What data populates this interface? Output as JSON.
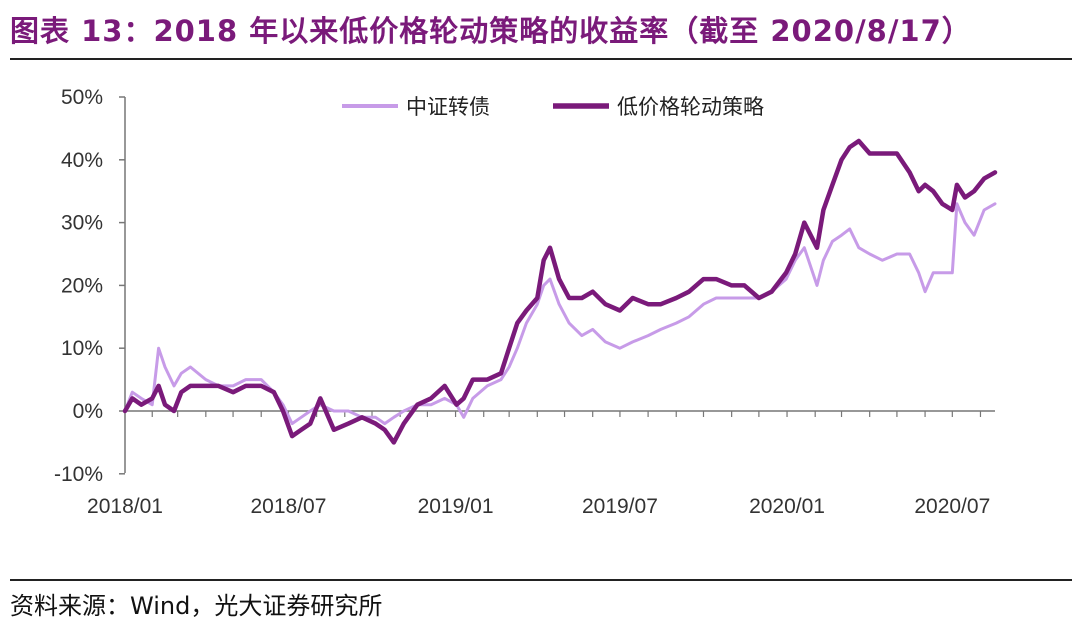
{
  "header": {
    "title": "图表 13：2018 年以来低价格轮动策略的收益率（截至 2020/8/17）"
  },
  "footer": {
    "source": "资料来源：Wind，光大证券研究所"
  },
  "chart_data": {
    "type": "line",
    "title": "图表 13：2018 年以来低价格轮动策略的收益率（截至 2020/8/17）",
    "xlabel": "",
    "ylabel": "",
    "x_ticks": [
      "2018/01",
      "2018/07",
      "2019/01",
      "2019/07",
      "2020/01",
      "2020/07"
    ],
    "y_ticks": [
      "50%",
      "40%",
      "30%",
      "20%",
      "10%",
      "0%",
      "-10%"
    ],
    "ylim": [
      -10,
      50
    ],
    "y_unit": "%",
    "x_range": [
      "2018-01-02",
      "2020-08-17"
    ],
    "legend_position": "top-center",
    "grid": false,
    "series": [
      {
        "name": "中证转债",
        "color": "#c79be8",
        "points": [
          [
            "2018-01-02",
            0
          ],
          [
            "2018-01-10",
            3
          ],
          [
            "2018-01-20",
            2
          ],
          [
            "2018-02-01",
            1
          ],
          [
            "2018-02-08",
            10
          ],
          [
            "2018-02-15",
            7
          ],
          [
            "2018-02-25",
            4
          ],
          [
            "2018-03-05",
            6
          ],
          [
            "2018-03-15",
            7
          ],
          [
            "2018-04-01",
            5
          ],
          [
            "2018-04-15",
            4
          ],
          [
            "2018-05-01",
            4
          ],
          [
            "2018-05-15",
            5
          ],
          [
            "2018-06-01",
            5
          ],
          [
            "2018-06-15",
            3
          ],
          [
            "2018-06-25",
            1
          ],
          [
            "2018-07-05",
            -2
          ],
          [
            "2018-07-15",
            -1
          ],
          [
            "2018-07-25",
            0
          ],
          [
            "2018-08-05",
            1
          ],
          [
            "2018-08-20",
            0
          ],
          [
            "2018-09-05",
            0
          ],
          [
            "2018-09-20",
            -1
          ],
          [
            "2018-10-05",
            -1
          ],
          [
            "2018-10-15",
            -2
          ],
          [
            "2018-10-25",
            -1
          ],
          [
            "2018-11-05",
            0
          ],
          [
            "2018-11-20",
            1
          ],
          [
            "2018-12-05",
            1
          ],
          [
            "2018-12-20",
            2
          ],
          [
            "2019-01-02",
            1
          ],
          [
            "2019-01-10",
            -1
          ],
          [
            "2019-01-20",
            2
          ],
          [
            "2019-02-05",
            4
          ],
          [
            "2019-02-20",
            5
          ],
          [
            "2019-03-01",
            7
          ],
          [
            "2019-03-10",
            10
          ],
          [
            "2019-03-20",
            14
          ],
          [
            "2019-04-01",
            17
          ],
          [
            "2019-04-08",
            20
          ],
          [
            "2019-04-15",
            21
          ],
          [
            "2019-04-25",
            17
          ],
          [
            "2019-05-06",
            14
          ],
          [
            "2019-05-20",
            12
          ],
          [
            "2019-06-01",
            13
          ],
          [
            "2019-06-15",
            11
          ],
          [
            "2019-07-01",
            10
          ],
          [
            "2019-07-15",
            11
          ],
          [
            "2019-08-01",
            12
          ],
          [
            "2019-08-15",
            13
          ],
          [
            "2019-09-01",
            14
          ],
          [
            "2019-09-15",
            15
          ],
          [
            "2019-10-01",
            17
          ],
          [
            "2019-10-15",
            18
          ],
          [
            "2019-11-01",
            18
          ],
          [
            "2019-11-15",
            18
          ],
          [
            "2019-12-01",
            18
          ],
          [
            "2019-12-15",
            19
          ],
          [
            "2019-12-31",
            21
          ],
          [
            "2020-01-10",
            24
          ],
          [
            "2020-01-20",
            26
          ],
          [
            "2020-02-03",
            20
          ],
          [
            "2020-02-10",
            24
          ],
          [
            "2020-02-20",
            27
          ],
          [
            "2020-03-01",
            28
          ],
          [
            "2020-03-10",
            29
          ],
          [
            "2020-03-20",
            26
          ],
          [
            "2020-04-01",
            25
          ],
          [
            "2020-04-15",
            24
          ],
          [
            "2020-05-01",
            25
          ],
          [
            "2020-05-15",
            25
          ],
          [
            "2020-05-25",
            22
          ],
          [
            "2020-06-01",
            19
          ],
          [
            "2020-06-10",
            22
          ],
          [
            "2020-06-20",
            22
          ],
          [
            "2020-07-01",
            22
          ],
          [
            "2020-07-06",
            33
          ],
          [
            "2020-07-15",
            30
          ],
          [
            "2020-07-25",
            28
          ],
          [
            "2020-08-05",
            32
          ],
          [
            "2020-08-17",
            33
          ]
        ]
      },
      {
        "name": "低价格轮动策略",
        "color": "#7a1a7a",
        "points": [
          [
            "2018-01-02",
            0
          ],
          [
            "2018-01-10",
            2
          ],
          [
            "2018-01-20",
            1
          ],
          [
            "2018-02-01",
            2
          ],
          [
            "2018-02-08",
            4
          ],
          [
            "2018-02-15",
            1
          ],
          [
            "2018-02-25",
            0
          ],
          [
            "2018-03-05",
            3
          ],
          [
            "2018-03-15",
            4
          ],
          [
            "2018-04-01",
            4
          ],
          [
            "2018-04-15",
            4
          ],
          [
            "2018-05-01",
            3
          ],
          [
            "2018-05-15",
            4
          ],
          [
            "2018-06-01",
            4
          ],
          [
            "2018-06-15",
            3
          ],
          [
            "2018-06-25",
            0
          ],
          [
            "2018-07-05",
            -4
          ],
          [
            "2018-07-15",
            -3
          ],
          [
            "2018-07-25",
            -2
          ],
          [
            "2018-08-05",
            2
          ],
          [
            "2018-08-20",
            -3
          ],
          [
            "2018-09-05",
            -2
          ],
          [
            "2018-09-20",
            -1
          ],
          [
            "2018-10-05",
            -2
          ],
          [
            "2018-10-15",
            -3
          ],
          [
            "2018-10-25",
            -5
          ],
          [
            "2018-11-05",
            -2
          ],
          [
            "2018-11-20",
            1
          ],
          [
            "2018-12-05",
            2
          ],
          [
            "2018-12-20",
            4
          ],
          [
            "2019-01-02",
            1
          ],
          [
            "2019-01-10",
            2
          ],
          [
            "2019-01-20",
            5
          ],
          [
            "2019-02-05",
            5
          ],
          [
            "2019-02-20",
            6
          ],
          [
            "2019-03-01",
            10
          ],
          [
            "2019-03-10",
            14
          ],
          [
            "2019-03-20",
            16
          ],
          [
            "2019-04-01",
            18
          ],
          [
            "2019-04-08",
            24
          ],
          [
            "2019-04-15",
            26
          ],
          [
            "2019-04-25",
            21
          ],
          [
            "2019-05-06",
            18
          ],
          [
            "2019-05-20",
            18
          ],
          [
            "2019-06-01",
            19
          ],
          [
            "2019-06-15",
            17
          ],
          [
            "2019-07-01",
            16
          ],
          [
            "2019-07-15",
            18
          ],
          [
            "2019-08-01",
            17
          ],
          [
            "2019-08-15",
            17
          ],
          [
            "2019-09-01",
            18
          ],
          [
            "2019-09-15",
            19
          ],
          [
            "2019-10-01",
            21
          ],
          [
            "2019-10-15",
            21
          ],
          [
            "2019-11-01",
            20
          ],
          [
            "2019-11-15",
            20
          ],
          [
            "2019-12-01",
            18
          ],
          [
            "2019-12-15",
            19
          ],
          [
            "2019-12-31",
            22
          ],
          [
            "2020-01-10",
            25
          ],
          [
            "2020-01-20",
            30
          ],
          [
            "2020-02-03",
            26
          ],
          [
            "2020-02-10",
            32
          ],
          [
            "2020-02-20",
            36
          ],
          [
            "2020-03-01",
            40
          ],
          [
            "2020-03-10",
            42
          ],
          [
            "2020-03-20",
            43
          ],
          [
            "2020-04-01",
            41
          ],
          [
            "2020-04-15",
            41
          ],
          [
            "2020-05-01",
            41
          ],
          [
            "2020-05-15",
            38
          ],
          [
            "2020-05-25",
            35
          ],
          [
            "2020-06-01",
            36
          ],
          [
            "2020-06-10",
            35
          ],
          [
            "2020-06-20",
            33
          ],
          [
            "2020-07-01",
            32
          ],
          [
            "2020-07-06",
            36
          ],
          [
            "2020-07-15",
            34
          ],
          [
            "2020-07-25",
            35
          ],
          [
            "2020-08-05",
            37
          ],
          [
            "2020-08-17",
            38
          ]
        ]
      }
    ]
  }
}
